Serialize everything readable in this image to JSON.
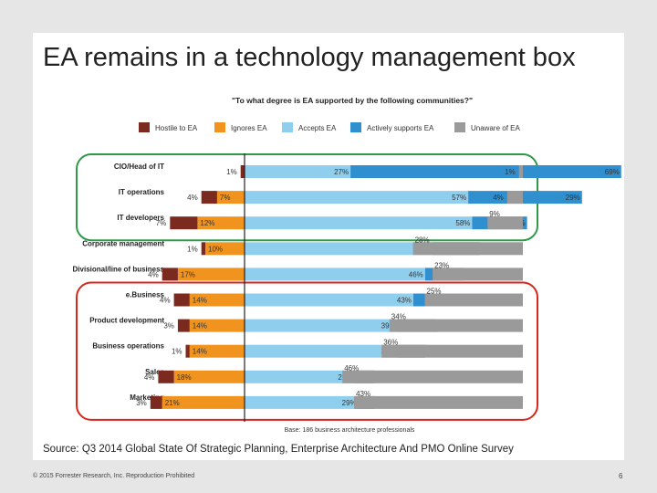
{
  "slide": {
    "title": "EA remains in a technology management box",
    "source": "Source: Q3 2014 Global State Of Strategic Planning, Enterprise Architecture And PMO Online Survey",
    "footer": "© 2015 Forrester Research, Inc. Reproduction Prohibited",
    "page_number": "6"
  },
  "chart_data": {
    "type": "bar",
    "stacked": "diverging",
    "title": "\"To what degree is EA supported by the following communities?\"",
    "base_note": "Base: 186 business architecture professionals",
    "legend_position": "top",
    "categories": [
      "CIO/Head of IT",
      "IT operations",
      "IT developers",
      "Corporate management",
      "Divisional/line of business",
      "e.Business",
      "Product development",
      "Business operations",
      "Sales",
      "Marketing"
    ],
    "series": [
      {
        "name": "Hostile to EA",
        "color": "#7a2a1e",
        "values": [
          1,
          4,
          7,
          1,
          4,
          4,
          3,
          1,
          4,
          3
        ],
        "labels": [
          "1%",
          "4%",
          "7%",
          "1%",
          "4%",
          "4%",
          "3%",
          "1%",
          "4%",
          "3%"
        ]
      },
      {
        "name": "Ignores EA",
        "color": "#f0941f",
        "values": [
          0,
          7,
          12,
          10,
          17,
          14,
          14,
          14,
          18,
          21
        ],
        "labels": [
          "",
          "7%",
          "12%",
          "10%",
          "17%",
          "14%",
          "14%",
          "14%",
          "18%",
          "21%"
        ]
      },
      {
        "name": "Accepts EA",
        "color": "#8fcfed",
        "values": [
          27,
          57,
          58,
          48,
          46,
          43,
          39,
          39,
          28,
          29
        ],
        "labels": [
          "27%",
          "57%",
          "58%",
          "48%",
          "46%",
          "43%",
          "39%",
          "39%",
          "28%",
          "29%"
        ]
      },
      {
        "name": "Actively supports EA",
        "color": "#2f8fcf",
        "values": [
          69,
          29,
          14,
          12,
          10,
          14,
          10,
          7,
          5,
          4
        ],
        "labels": [
          "69%",
          "29%",
          "14%",
          "12%",
          "10%",
          "14%",
          "10%",
          "7%",
          "5%",
          "4%"
        ]
      },
      {
        "name": "Unaware of EA",
        "color": "#9a9a9a",
        "values": [
          1,
          4,
          9,
          28,
          23,
          25,
          34,
          36,
          46,
          43
        ],
        "labels": [
          "1%",
          "4%",
          "9%",
          "28%",
          "23%",
          "25%",
          "34%",
          "36%",
          "46%",
          "43%"
        ]
      }
    ],
    "highlight_groups": [
      {
        "color": "#2e9a48",
        "rows": [
          0,
          2
        ]
      },
      {
        "color": "#d9261c",
        "rows": [
          5,
          9
        ]
      }
    ]
  }
}
